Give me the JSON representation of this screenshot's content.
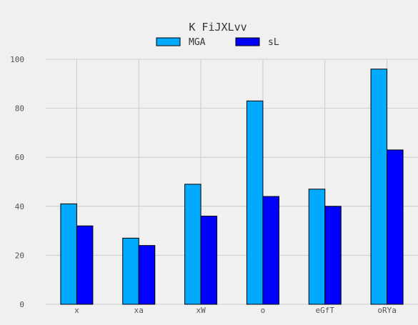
{
  "chart_data": {
    "type": "bar",
    "title": "K FiJXLvv",
    "xlabel": "",
    "ylabel": "",
    "categories": [
      "x",
      "xa",
      "xW",
      "o",
      "eGfT",
      "oRYa"
    ],
    "series": [
      {
        "name": "MGA",
        "color": "#00aaff",
        "values": [
          41,
          27,
          49,
          83,
          47,
          96
        ]
      },
      {
        "name": "sL",
        "color": "#0000ff",
        "values": [
          32,
          24,
          36,
          44,
          40,
          63
        ]
      }
    ],
    "ylim": [
      0,
      100
    ],
    "yticks": [
      0,
      20,
      40,
      60,
      80,
      100
    ],
    "grid": true,
    "legend_position": "top-center"
  }
}
